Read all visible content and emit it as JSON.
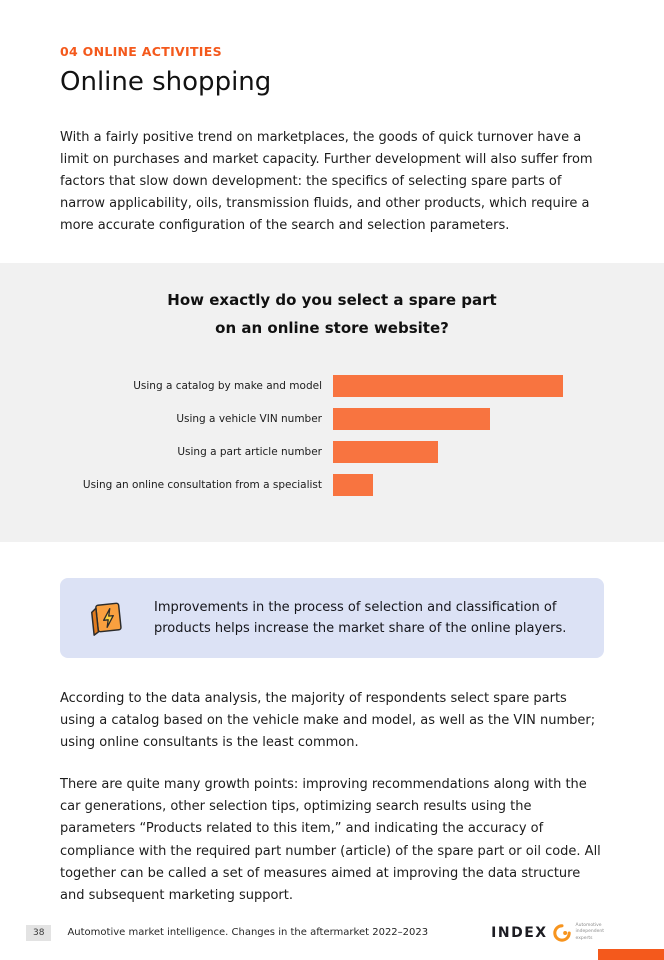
{
  "page": {
    "kicker": "04 ONLINE ACTIVITIES",
    "title": "Online shopping",
    "intro": "With a fairly positive trend on marketplaces, the goods of quick turnover have a limit on purchases and market capacity. Further development will also suffer from factors that slow down development: the specifics of selecting spare parts of narrow applicability, oils, transmission fluids, and other products, which require a more accurate configuration of the search and selection parameters."
  },
  "chart_data": {
    "type": "bar",
    "orientation": "horizontal",
    "title_line1": "How exactly do you select a spare part",
    "title_line2": "on an online store website?",
    "categories": [
      "Using a catalog by make and model",
      "Using a vehicle VIN number",
      "Using a part article number",
      "Using an online consultation from a specialist"
    ],
    "values": [
      57,
      39,
      26,
      10
    ],
    "xlim": [
      0,
      62
    ],
    "xlabel": "",
    "ylabel": "",
    "grid": false,
    "legend": "none",
    "bar_color": "#F87440"
  },
  "callout": {
    "icon": "package-lightning-icon",
    "text": "Improvements in the process of selection and classification of products helps increase the market share of the online players."
  },
  "body": {
    "para1": "According to the data analysis, the majority of respondents select spare parts using a catalog based on the vehicle make and model, as well as the VIN number; using online consultants is the least common.",
    "para2": "There are quite many growth points: improving recommendations along with the car generations, other selection tips, optimizing search results using the parameters “Products related to this item,” and indicating the accuracy of compliance with the required part number (article) of the spare part or oil code. All together can be called a set of measures aimed at improving the data structure and subsequent marketing support."
  },
  "footer": {
    "page_number": "38",
    "text": "Automotive market intelligence. Changes in the aftermarket 2022–2023",
    "logo_text": "INDEX",
    "tagline": [
      "Automotive",
      "independent",
      "experts"
    ]
  },
  "colors": {
    "accent": "#F4591C",
    "bar": "#F87440",
    "band_bg": "#f1f1f1",
    "callout_bg": "#dce2f5"
  }
}
